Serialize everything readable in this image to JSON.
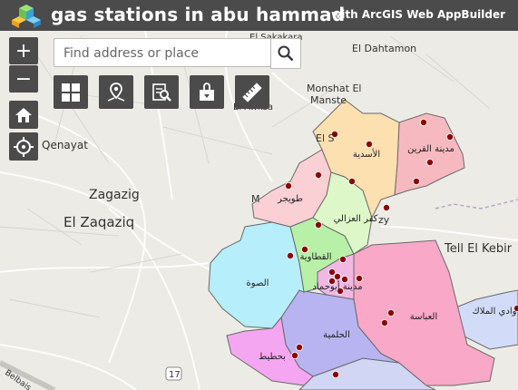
{
  "header": {
    "title": "gas stations in abu hammad",
    "subtitle": "with ArcGIS Web AppBuilder"
  },
  "search": {
    "placeholder": "Find address or place"
  },
  "zoom": {
    "in_label": "+",
    "out_label": "−"
  },
  "tools": [
    {
      "name": "basemap-gallery-icon"
    },
    {
      "name": "directions-icon"
    },
    {
      "name": "query-icon"
    },
    {
      "name": "print-icon"
    },
    {
      "name": "measure-icon"
    }
  ],
  "map": {
    "place_labels": {
      "el_sakakara": "El Sakakara",
      "el_dahtamon": "El Dahtamon",
      "monshat": "Monshat El",
      "manstet": "Manste",
      "el_awksa": "El Awksa",
      "el_s": "El S",
      "qenayat": "Qenayat",
      "zagazig": "Zagazig",
      "el_zaqaziq": "El Zaqaziq",
      "tell_el_kebir": "Tell El Kebir",
      "m": "M",
      "zy": "zy",
      "belbais": "Belbais",
      "road_17": "17"
    },
    "district_labels": {
      "asadiya": "الأسدية",
      "qurein": "مدينة القرين",
      "tuwaijir": "طويجر",
      "kafr_ghazali": "كفر العزالي",
      "qataawiya": "القطاوية",
      "sawa": "الصوة",
      "abu_hammad": "مدينة أبوحماد",
      "abbasa": "العباسة",
      "wadi_mollak": "وادي الملاك",
      "helmiya": "الحلمية",
      "bahtit": "بحطيط"
    },
    "colors": {
      "asadiya": "#fde0b0",
      "qurein": "#f7b9c0",
      "tuwaijir": "#fbd0d4",
      "kafr_ghazali": "#ddf7c9",
      "qataawiya": "#b9f0a8",
      "sawa": "#b6eefb",
      "abu_hammad": "#f2b8e4",
      "abbasa": "#f9a8c7",
      "wadi_mollak": "#d2dcf9",
      "helmiya": "#b8b4f2",
      "bahtit": "#f4a7f0",
      "south": "#d0d6f4",
      "station": "#8b0000"
    }
  }
}
